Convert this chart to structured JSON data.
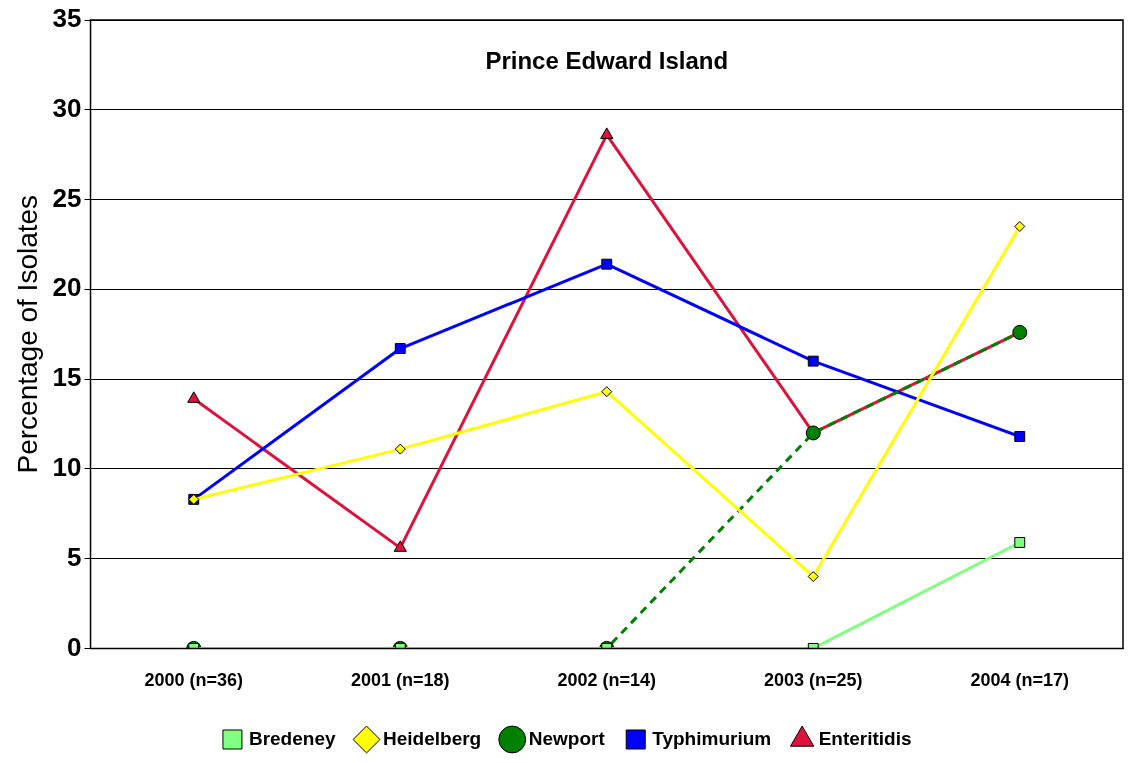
{
  "chart_data": {
    "type": "line",
    "title": "Prince Edward Island",
    "ylabel": "Percentage of Isolates",
    "categories": [
      "2000 (n=36)",
      "2001 (n=18)",
      "2002 (n=14)",
      "2003 (n=25)",
      "2004 (n=17)"
    ],
    "series": [
      {
        "name": "Bredeney",
        "color": "#80ff80",
        "values": [
          0,
          0,
          0,
          0,
          5.9
        ],
        "marker": "square",
        "line_style": "solid"
      },
      {
        "name": "Heidelberg",
        "color": "#ffff00",
        "values": [
          8.3,
          11.1,
          14.3,
          4.0,
          23.5
        ],
        "marker": "diamond",
        "line_style": "solid"
      },
      {
        "name": "Newport",
        "color": "#008000",
        "values": [
          0,
          0,
          0,
          12.0,
          17.6
        ],
        "marker": "circle",
        "line_style": "dashed"
      },
      {
        "name": "Typhimurium",
        "color": "#0000ff",
        "values": [
          8.3,
          16.7,
          21.4,
          16.0,
          11.8
        ],
        "marker": "square",
        "line_style": "solid"
      },
      {
        "name": "Enteritidis",
        "color": "#dc143c",
        "values": [
          13.9,
          5.6,
          28.6,
          12.0,
          17.6
        ],
        "marker": "triangle",
        "line_style": "solid"
      }
    ],
    "ylim": [
      0,
      35
    ],
    "yticks": [
      0,
      5,
      10,
      15,
      20,
      25,
      30,
      35
    ],
    "grid": "y",
    "legend": "bottom"
  }
}
